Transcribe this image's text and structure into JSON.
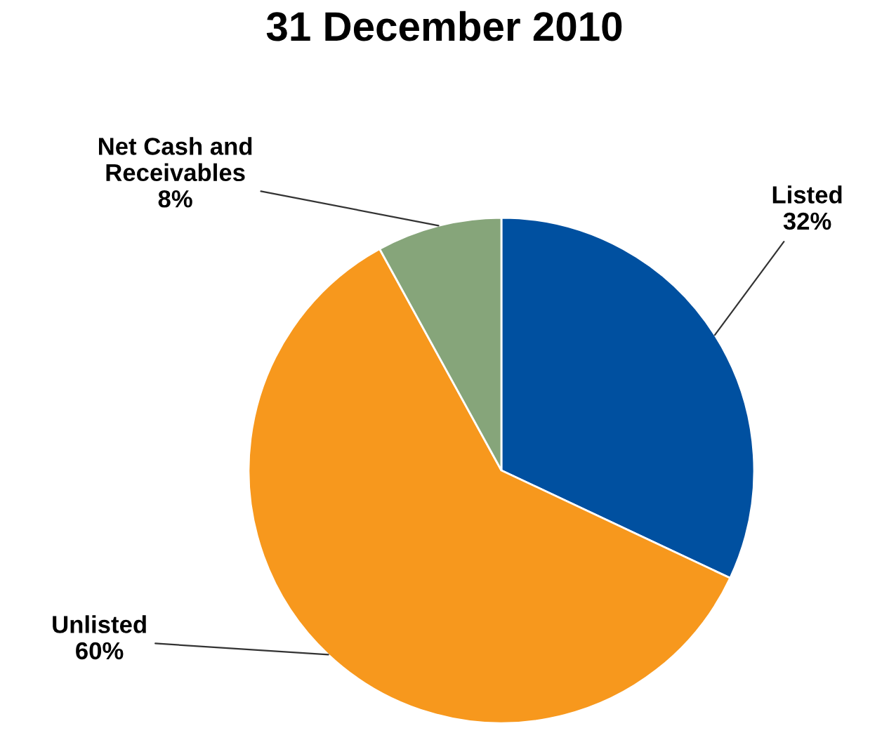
{
  "chart_data": {
    "type": "pie",
    "title": "31 December 2010",
    "categories": [
      "Listed",
      "Unlisted",
      "Net Cash and\nReceivables"
    ],
    "values": [
      32,
      60,
      8
    ],
    "value_labels": [
      "32%",
      "60%",
      "8%"
    ],
    "colors": [
      "#0050a0",
      "#f7981d",
      "#86a57a"
    ]
  }
}
